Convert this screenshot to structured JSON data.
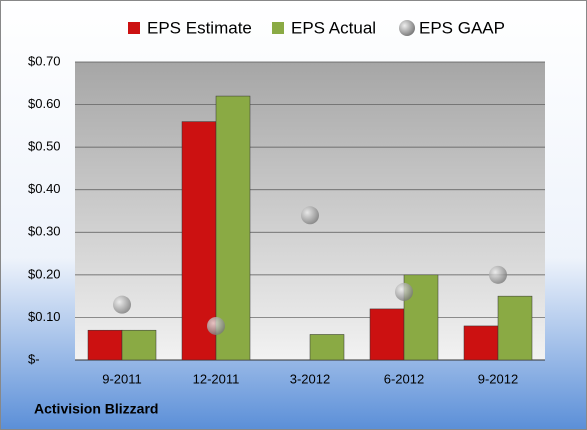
{
  "chart_data": {
    "type": "bar",
    "categories": [
      "9-2011",
      "12-2011",
      "3-2012",
      "6-2012",
      "9-2012"
    ],
    "series": [
      {
        "name": "EPS Estimate",
        "color": "#cc1111",
        "values": [
          0.07,
          0.56,
          null,
          0.12,
          0.08
        ]
      },
      {
        "name": "EPS Actual",
        "color": "#8aaa44",
        "values": [
          0.07,
          0.62,
          0.06,
          0.2,
          0.15
        ]
      },
      {
        "name": "EPS GAAP",
        "color": "#999999",
        "style": "scatter",
        "values": [
          0.13,
          0.08,
          0.34,
          0.16,
          0.2
        ]
      }
    ],
    "ylim": [
      0,
      0.7
    ],
    "yticks": [
      {
        "value": 0,
        "label": "$-"
      },
      {
        "value": 0.1,
        "label": "$0.10"
      },
      {
        "value": 0.2,
        "label": "$0.20"
      },
      {
        "value": 0.3,
        "label": "$0.30"
      },
      {
        "value": 0.4,
        "label": "$0.40"
      },
      {
        "value": 0.5,
        "label": "$0.50"
      },
      {
        "value": 0.6,
        "label": "$0.60"
      },
      {
        "value": 0.7,
        "label": "$0.70"
      }
    ],
    "grid": true,
    "legend": "top",
    "footer": "Activision Blizzard"
  }
}
